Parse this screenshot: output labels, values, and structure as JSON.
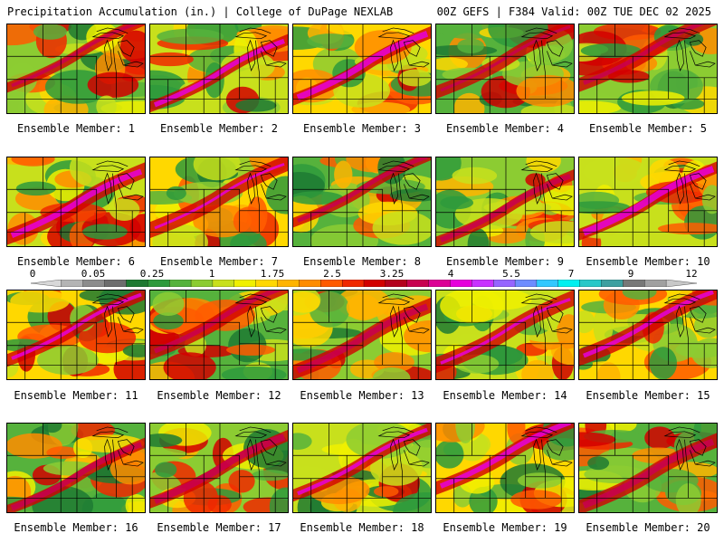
{
  "header": {
    "title_left": "Precipitation Accumulation (in.) | College of DuPage NEXLAB",
    "title_right": "00Z GEFS | F384 Valid: 00Z TUE DEC 02 2025"
  },
  "colorbar": {
    "tick_labels": [
      "0",
      "0.05",
      "0.25",
      "1",
      "1.75",
      "2.5",
      "3.25",
      "4",
      "5.5",
      "7",
      "9",
      "12"
    ],
    "colors": [
      "#d8d8d8",
      "#b4b4b4",
      "#8c8c8c",
      "#6e6e6e",
      "#1e7a32",
      "#2e9a3c",
      "#56b23c",
      "#8ccc32",
      "#c8e01c",
      "#f0f000",
      "#ffd800",
      "#ffb400",
      "#ff8c00",
      "#ff5a00",
      "#f02800",
      "#d20000",
      "#b4001e",
      "#c80050",
      "#dc0096",
      "#e600dc",
      "#c832ff",
      "#9664ff",
      "#6e8cff",
      "#32c8ff",
      "#00f0f0",
      "#28c8c8",
      "#3ca0a0",
      "#787878",
      "#a0a0a0",
      "#c8c8c8"
    ]
  },
  "panels": [
    {
      "label": "Ensemble Member: 1"
    },
    {
      "label": "Ensemble Member: 2"
    },
    {
      "label": "Ensemble Member: 3"
    },
    {
      "label": "Ensemble Member: 4"
    },
    {
      "label": "Ensemble Member: 5"
    },
    {
      "label": "Ensemble Member: 6"
    },
    {
      "label": "Ensemble Member: 7"
    },
    {
      "label": "Ensemble Member: 8"
    },
    {
      "label": "Ensemble Member: 9"
    },
    {
      "label": "Ensemble Member: 10"
    },
    {
      "label": "Ensemble Member: 11"
    },
    {
      "label": "Ensemble Member: 12"
    },
    {
      "label": "Ensemble Member: 13"
    },
    {
      "label": "Ensemble Member: 14"
    },
    {
      "label": "Ensemble Member: 15"
    },
    {
      "label": "Ensemble Member: 16"
    },
    {
      "label": "Ensemble Member: 17"
    },
    {
      "label": "Ensemble Member: 18"
    },
    {
      "label": "Ensemble Member: 19"
    },
    {
      "label": "Ensemble Member: 20"
    }
  ]
}
